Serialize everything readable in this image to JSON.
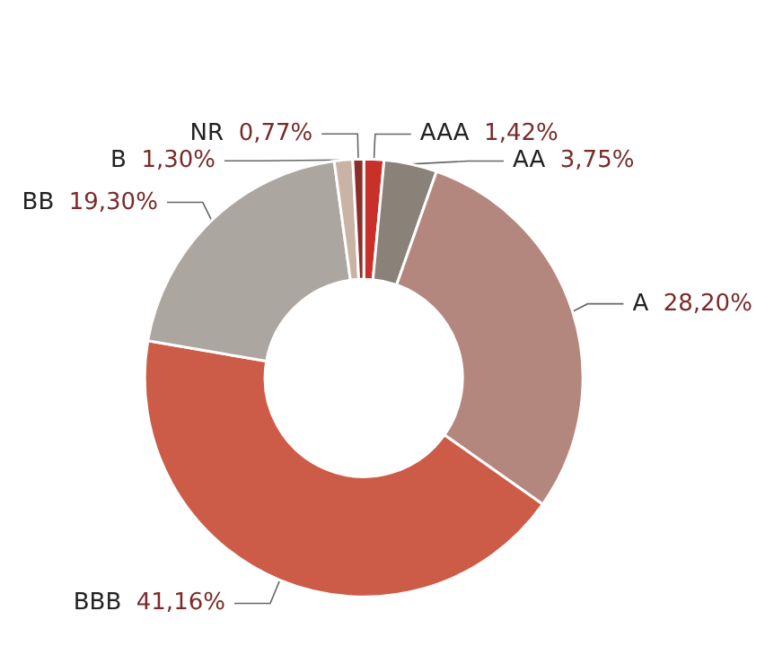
{
  "chart_data": {
    "type": "donut",
    "categories": [
      "AAA",
      "AA",
      "A",
      "BBB",
      "BB",
      "B",
      "NR"
    ],
    "values": [
      1.42,
      3.75,
      28.2,
      41.16,
      19.3,
      1.3,
      0.77
    ],
    "value_labels": [
      "1,42%",
      "3,75%",
      "28,20%",
      "41,16%",
      "19,30%",
      "1,30%",
      "0,77%"
    ],
    "colors": [
      "#c8312a",
      "#8a8178",
      "#b3877e",
      "#cc5c47",
      "#aba69f",
      "#c9b3a5",
      "#8c2f2a"
    ]
  }
}
